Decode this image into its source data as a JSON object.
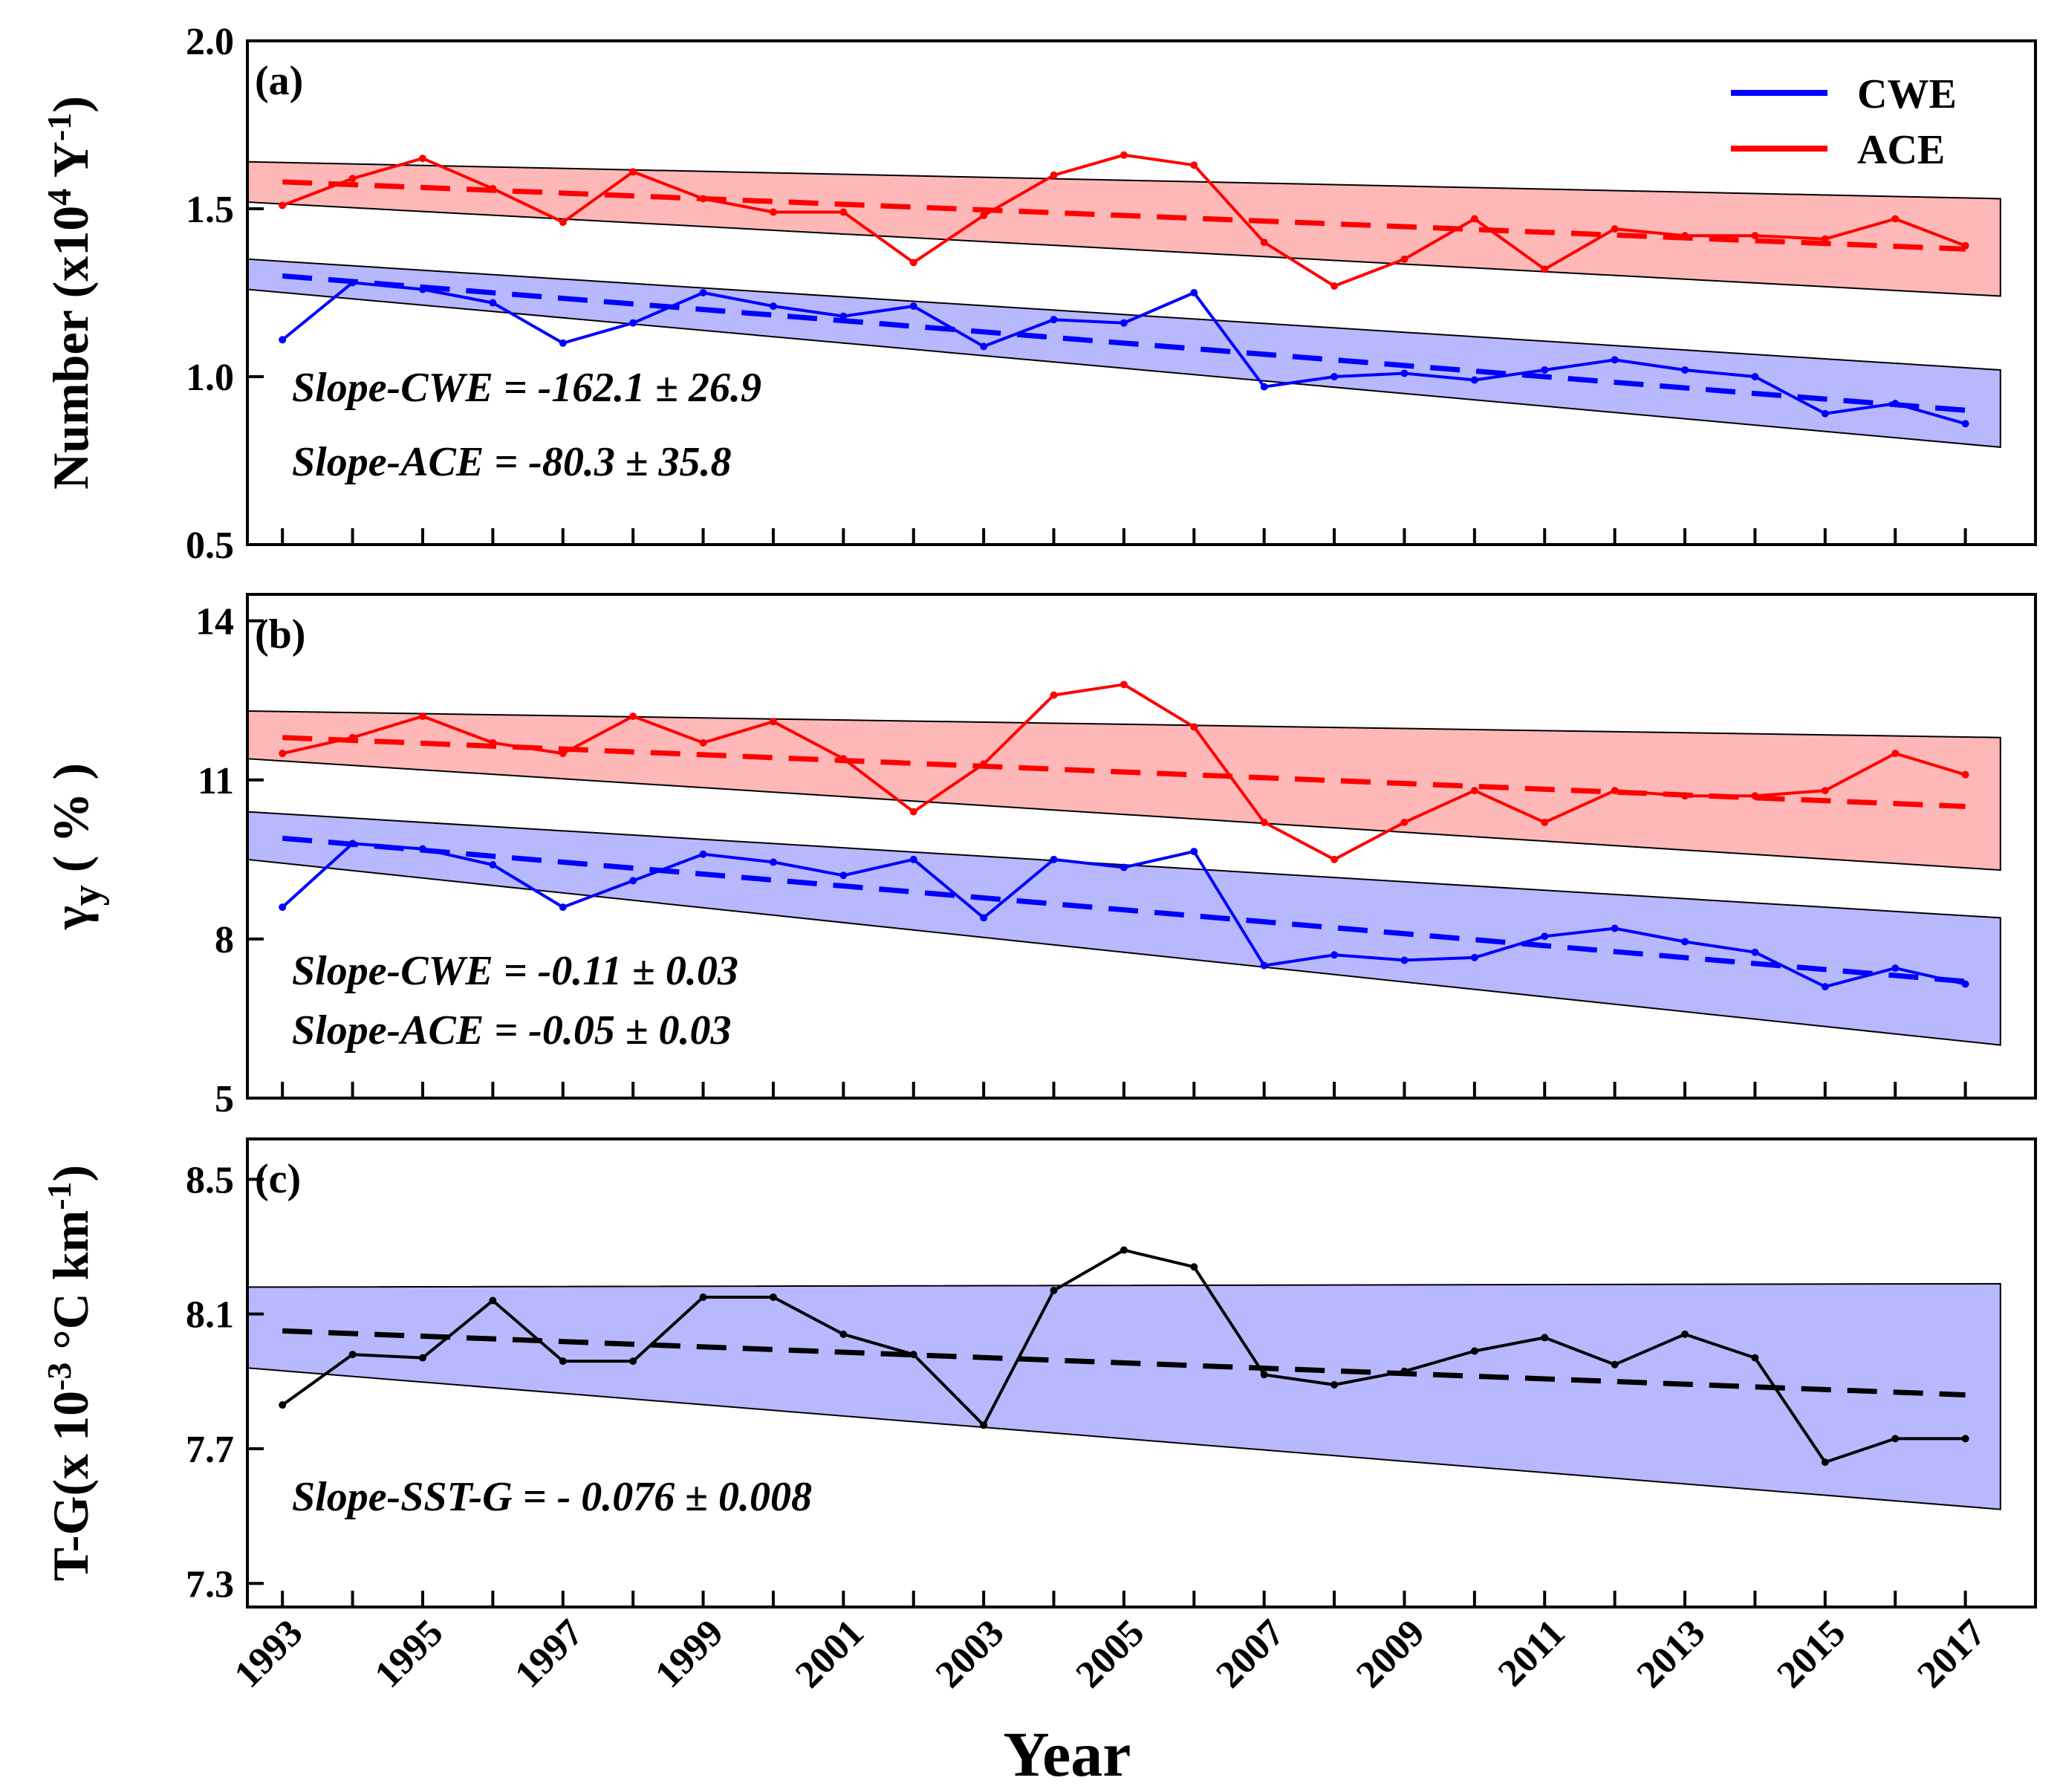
{
  "chart_data": [
    {
      "panel": "(a)",
      "type": "line",
      "ylabel_main": "Number (x10",
      "ylabel_sup1": "4",
      "ylabel_mid": " Y",
      "ylabel_sup2": "-1",
      "ylabel_end": ")",
      "ylim": [
        0.5,
        2.0
      ],
      "yticks": [
        "0.5",
        "1.0",
        "1.5",
        "2.0"
      ],
      "ytick_values": [
        0.5,
        1.0,
        1.5,
        2.0
      ],
      "x": [
        1993,
        1994,
        1995,
        1996,
        1997,
        1998,
        1999,
        2000,
        2001,
        2002,
        2003,
        2004,
        2005,
        2006,
        2007,
        2008,
        2009,
        2010,
        2011,
        2012,
        2013,
        2014,
        2015,
        2016,
        2017
      ],
      "series": [
        {
          "name": "CWE",
          "color": "#0000ff",
          "values": [
            1.11,
            1.28,
            1.26,
            1.22,
            1.1,
            1.16,
            1.25,
            1.21,
            1.18,
            1.21,
            1.09,
            1.17,
            1.16,
            1.25,
            0.97,
            1.0,
            1.01,
            0.99,
            1.02,
            1.05,
            1.02,
            1.0,
            0.89,
            0.92,
            0.86
          ],
          "trend": [
            1.3,
            0.9
          ],
          "band_upper": [
            1.35,
            1.02
          ],
          "band_lower": [
            1.26,
            0.79
          ]
        },
        {
          "name": "ACE",
          "color": "#ff0000",
          "values": [
            1.51,
            1.59,
            1.65,
            1.56,
            1.46,
            1.61,
            1.53,
            1.49,
            1.49,
            1.34,
            1.48,
            1.6,
            1.66,
            1.63,
            1.4,
            1.27,
            1.35,
            1.47,
            1.32,
            1.44,
            1.42,
            1.42,
            1.41,
            1.47,
            1.39
          ],
          "trend": [
            1.58,
            1.38
          ],
          "band_upper": [
            1.64,
            1.53
          ],
          "band_lower": [
            1.52,
            1.24
          ]
        }
      ],
      "annotations": [
        "Slope-CWE = -162.1  ± 26.9",
        "Slope-ACE = -80.3   ± 35.8"
      ],
      "legend": [
        "CWE",
        "ACE"
      ]
    },
    {
      "panel": "(b)",
      "type": "line",
      "ylabel_main": "γ",
      "ylabel_sub": "y",
      "ylabel_end": " ( % )",
      "ylim": [
        5,
        14.5
      ],
      "yticks": [
        "5",
        "8",
        "11",
        "14"
      ],
      "ytick_values": [
        5,
        8,
        11,
        14
      ],
      "x": [
        1993,
        1994,
        1995,
        1996,
        1997,
        1998,
        1999,
        2000,
        2001,
        2002,
        2003,
        2004,
        2005,
        2006,
        2007,
        2008,
        2009,
        2010,
        2011,
        2012,
        2013,
        2014,
        2015,
        2016,
        2017
      ],
      "series": [
        {
          "name": "CWE",
          "color": "#0000ff",
          "values": [
            8.6,
            9.8,
            9.7,
            9.4,
            8.6,
            9.1,
            9.6,
            9.45,
            9.2,
            9.5,
            8.4,
            9.5,
            9.35,
            9.65,
            7.5,
            7.7,
            7.6,
            7.65,
            8.05,
            8.2,
            7.95,
            7.75,
            7.1,
            7.45,
            7.15
          ],
          "trend": [
            9.9,
            7.2
          ],
          "band_upper": [
            10.4,
            8.4
          ],
          "band_lower": [
            9.5,
            6.0
          ]
        },
        {
          "name": "ACE",
          "color": "#ff0000",
          "values": [
            11.5,
            11.8,
            12.2,
            11.7,
            11.5,
            12.2,
            11.7,
            12.1,
            11.4,
            10.4,
            11.3,
            12.6,
            12.8,
            12.0,
            10.2,
            9.5,
            10.2,
            10.8,
            10.2,
            10.8,
            10.7,
            10.7,
            10.8,
            11.5,
            11.1
          ],
          "trend": [
            11.8,
            10.5
          ],
          "band_upper": [
            12.3,
            11.8
          ],
          "band_lower": [
            11.4,
            9.3
          ]
        }
      ],
      "annotations": [
        "Slope-CWE = -0.11  ± 0.03",
        "Slope-ACE = -0.05   ± 0.03"
      ]
    },
    {
      "panel": "(c)",
      "type": "line",
      "ylabel_main": "T-G(x 10",
      "ylabel_sup1": "-3",
      "ylabel_mid": " °C km",
      "ylabel_sup2": "-1",
      "ylabel_end": ")",
      "ylim": [
        7.23,
        8.62
      ],
      "yticks": [
        "7.3",
        "7.7",
        "8.1",
        "8.5"
      ],
      "ytick_values": [
        7.3,
        7.7,
        8.1,
        8.5
      ],
      "x": [
        1993,
        1994,
        1995,
        1996,
        1997,
        1998,
        1999,
        2000,
        2001,
        2002,
        2003,
        2004,
        2005,
        2006,
        2007,
        2008,
        2009,
        2010,
        2011,
        2012,
        2013,
        2014,
        2015,
        2016,
        2017
      ],
      "series": [
        {
          "name": "SST-G",
          "color": "#000000",
          "values": [
            7.83,
            7.98,
            7.97,
            8.14,
            7.96,
            7.96,
            8.15,
            8.15,
            8.04,
            7.98,
            7.77,
            8.17,
            8.29,
            8.24,
            7.92,
            7.89,
            7.93,
            7.99,
            8.03,
            7.95,
            8.04,
            7.97,
            7.66,
            7.73,
            7.73
          ],
          "trend": [
            8.05,
            7.86
          ],
          "band_upper": [
            8.18,
            8.19
          ],
          "band_lower": [
            7.94,
            7.52
          ]
        }
      ],
      "annotations": [
        "Slope-SST-G = - 0.076   ±  0.008"
      ]
    }
  ],
  "xlabel": "Year",
  "xtick_labels": [
    "1993",
    "1995",
    "1997",
    "1999",
    "2001",
    "2003",
    "2005",
    "2007",
    "2009",
    "2011",
    "2013",
    "2015",
    "2017"
  ],
  "colors": {
    "cwe": "#0000ff",
    "ace": "#ff0000",
    "black": "#000000",
    "red_band": "#ffb8b8",
    "blue_band": "#b8b8ff"
  }
}
